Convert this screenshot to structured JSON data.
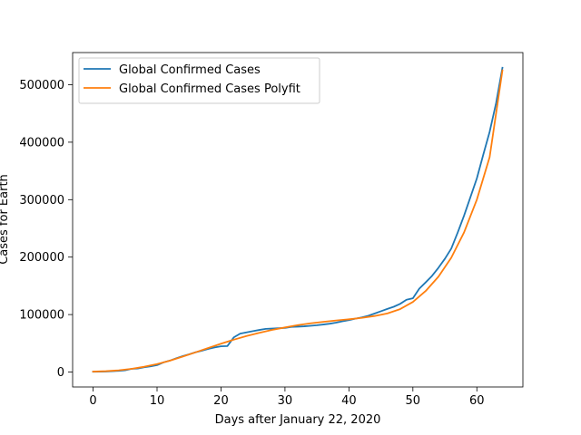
{
  "chart_data": {
    "type": "line",
    "title": "",
    "xlabel": "Days after January 22, 2020",
    "ylabel": "Cases for Earth",
    "xlim": [
      -3.2,
      67.2
    ],
    "ylim": [
      -26000,
      556000
    ],
    "x_ticks": [
      0,
      10,
      20,
      30,
      40,
      50,
      60
    ],
    "y_ticks": [
      0,
      100000,
      200000,
      300000,
      400000,
      500000
    ],
    "x_tick_labels": [
      "0",
      "10",
      "20",
      "30",
      "40",
      "50",
      "60"
    ],
    "y_tick_labels": [
      "0",
      "100000",
      "200000",
      "300000",
      "400000",
      "500000"
    ],
    "grid": false,
    "legend_position": "upper-left",
    "series": [
      {
        "name": "Global Confirmed Cases",
        "color": "#1f77b4",
        "x": [
          0,
          1,
          2,
          3,
          4,
          5,
          6,
          7,
          8,
          9,
          10,
          11,
          12,
          13,
          14,
          15,
          16,
          17,
          18,
          19,
          20,
          21,
          22,
          23,
          24,
          25,
          26,
          27,
          28,
          29,
          30,
          31,
          32,
          33,
          34,
          35,
          36,
          37,
          38,
          39,
          40,
          41,
          42,
          43,
          44,
          45,
          46,
          47,
          48,
          49,
          50,
          51,
          52,
          53,
          54,
          55,
          56,
          57,
          58,
          59,
          60,
          61,
          62,
          63,
          64
        ],
        "values": [
          555,
          654,
          941,
          1434,
          2118,
          2927,
          5578,
          6166,
          8234,
          9927,
          12038,
          16787,
          19881,
          23892,
          27635,
          30817,
          34391,
          37120,
          40150,
          42762,
          44802,
          45221,
          60368,
          66885,
          69030,
          71224,
          73258,
          75136,
          75639,
          76197,
          76823,
          78579,
          78965,
          79568,
          80413,
          81395,
          82754,
          84120,
          86011,
          88369,
          90306,
          92840,
          95120,
          97886,
          101801,
          105847,
          109821,
          113590,
          118620,
          125875,
          128343,
          145193,
          156099,
          167447,
          181546,
          197102,
          214821,
          242570,
          272208,
          304507,
          336953,
          378235,
          418045,
          467653,
          529591
        ]
      },
      {
        "name": "Global Confirmed Cases Polyfit",
        "color": "#ff7f0e",
        "x": [
          0,
          2,
          4,
          6,
          8,
          10,
          12,
          14,
          16,
          18,
          20,
          22,
          24,
          26,
          28,
          30,
          32,
          34,
          36,
          38,
          40,
          42,
          44,
          46,
          48,
          50,
          52,
          54,
          56,
          58,
          60,
          62,
          64
        ],
        "values": [
          800,
          1500,
          3000,
          5600,
          9200,
          13800,
          19800,
          26800,
          34200,
          41800,
          49300,
          56300,
          62700,
          68300,
          73300,
          77600,
          81600,
          84800,
          87400,
          89700,
          91800,
          94200,
          97500,
          102000,
          109500,
          122000,
          141000,
          166000,
          199000,
          243000,
          300000,
          374000,
          525000
        ]
      }
    ]
  }
}
